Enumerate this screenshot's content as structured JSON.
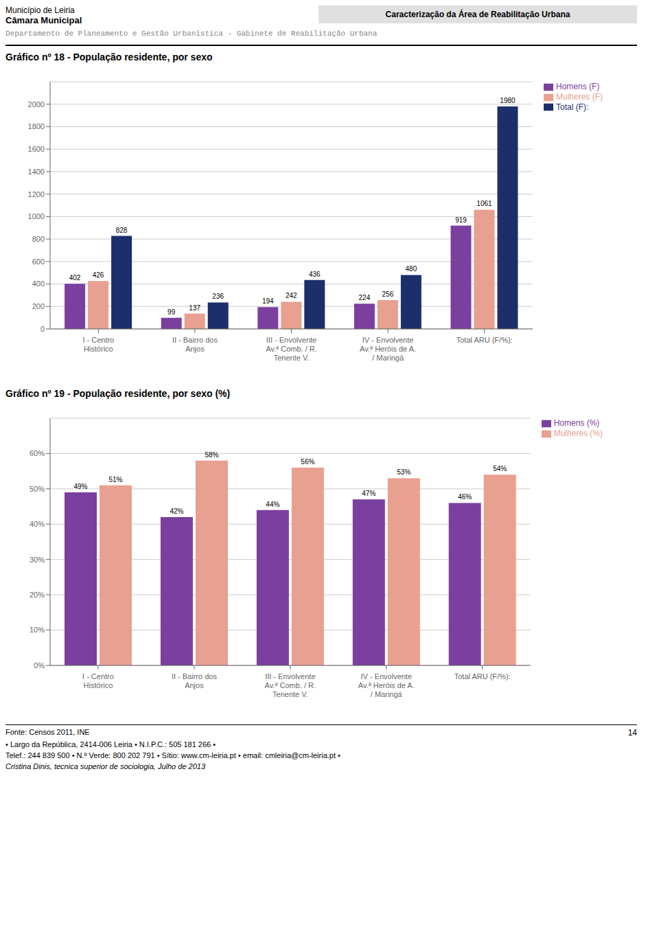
{
  "annotations": [
    "Município de Leiria",
    "Câmara Municipal",
    "Caracterização da Área de Reabilitação Urbana",
    "Departamento de Planeamento e Gestão  Urbanística - Gabinete de Reabilitação Urbana",
    "Fonte: Censos 2011, INE",
    "14",
    "• Largo da República, 2414-006 Leiria • N.I.P.C.: 505 181 266 •",
    "Telef.: 244 839 500  • N.º Verde: 800 202 791  • Sítio: www.cm-leiria.pt  • email: cmleiria@cm-leiria.pt •",
    "Cristina Dinis, tecnica superior de sociologia, Julho de 2013"
  ],
  "chart_data": [
    {
      "type": "bar",
      "title": "Gráfico nº 18 - População residente, por sexo",
      "categories": [
        "I - Centro\nHistórico",
        "II - Bairro dos\nAnjos",
        "III - Envolvente\nAv.ª Comb. / R.\nTenente V.",
        "IV - Envolvente\nAv.ª Heróis de A.\n/ Maringá",
        "Total ARU (F/%):"
      ],
      "series": [
        {
          "name": "Homens (F)",
          "color": "#7B3F9E",
          "values": [
            402,
            99,
            194,
            224,
            919
          ]
        },
        {
          "name": "Mulheres (F)",
          "color": "#E8A090",
          "values": [
            426,
            137,
            242,
            256,
            1061
          ]
        },
        {
          "name": "Total (F):",
          "color": "#1C2F6B",
          "values": [
            828,
            236,
            436,
            480,
            1980
          ]
        }
      ],
      "ylim": [
        0,
        2200
      ],
      "yticks": [
        0,
        200,
        400,
        600,
        800,
        1000,
        1200,
        1400,
        1600,
        1800,
        2000
      ],
      "grid": true,
      "legend": "right",
      "data_labels": true
    },
    {
      "type": "bar",
      "title": "Gráfico nº 19 - População residente, por sexo (%)",
      "categories": [
        "I - Centro\nHistórico",
        "II - Bairro dos\nAnjos",
        "III - Envolvente\nAv.ª Comb. / R.\nTenente V.",
        "IV - Envolvente\nAv.ª Heróis de A.\n/ Maringá",
        "Total ARU (F/%):"
      ],
      "series": [
        {
          "name": "Homens (%)",
          "color": "#7B3F9E",
          "values": [
            0.49,
            0.42,
            0.44,
            0.47,
            0.46
          ],
          "value_labels": [
            "49%",
            "42%",
            "44%",
            "47%",
            "46%"
          ]
        },
        {
          "name": "Mulheres (%)",
          "color": "#E8A090",
          "values": [
            0.51,
            0.58,
            0.56,
            0.53,
            0.54
          ],
          "value_labels": [
            "51%",
            "58%",
            "56%",
            "53%",
            "54%"
          ]
        }
      ],
      "ylim": [
        0,
        0.7
      ],
      "yticks": [
        {
          "value": 0.0,
          "label": "0%"
        },
        {
          "value": 0.1,
          "label": "10%"
        },
        {
          "value": 0.2,
          "label": "20%"
        },
        {
          "value": 0.3,
          "label": "30%"
        },
        {
          "value": 0.4,
          "label": "40%"
        },
        {
          "value": 0.5,
          "label": "50%"
        },
        {
          "value": 0.6,
          "label": "60%"
        }
      ],
      "grid": true,
      "legend": "right",
      "data_labels": true
    }
  ]
}
